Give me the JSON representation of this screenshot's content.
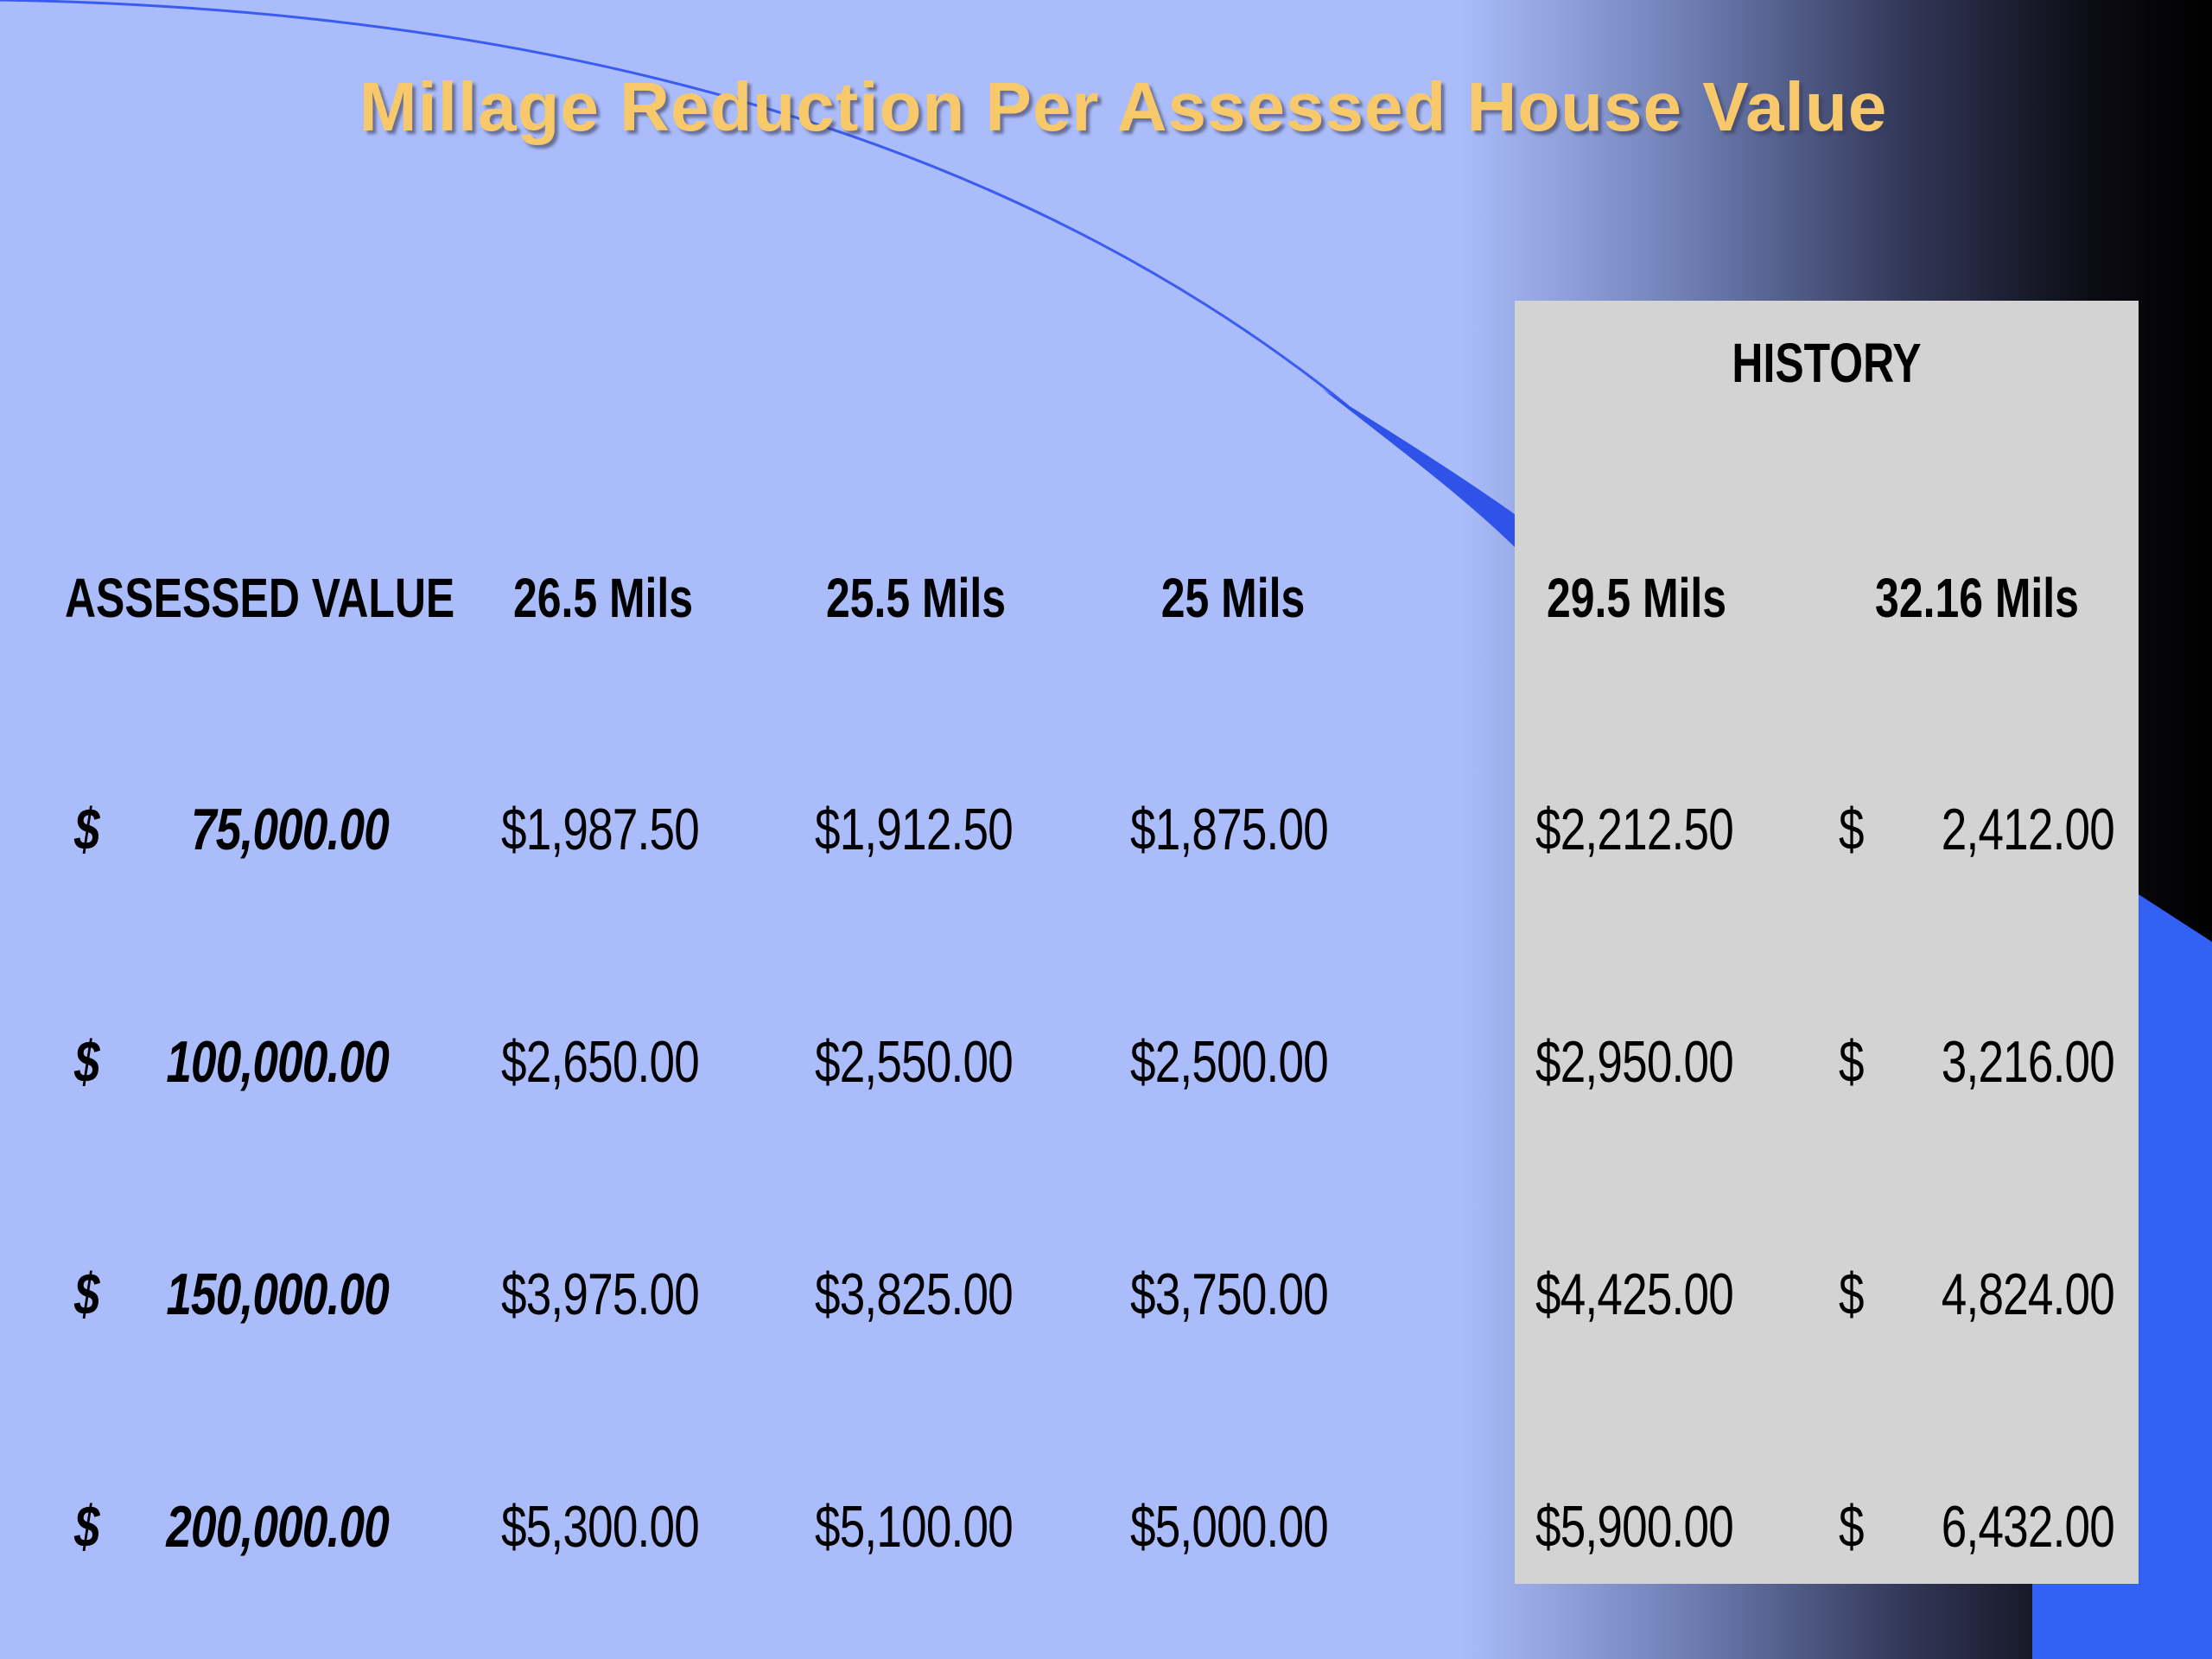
{
  "title": "Millage Reduction Per Assessed House Value",
  "colors": {
    "background": "#aabcfa",
    "title": "#f7c96b",
    "history_panel": "#d3d3d3",
    "accent_blue": "#3360f5"
  },
  "history_label": "HISTORY",
  "columns": [
    "ASSESSED VALUE",
    "26.5 Mils",
    "25.5 Mils",
    "25 Mils",
    "29.5 Mils",
    "32.16 Mils"
  ],
  "rows": [
    {
      "assessed_symbol": "$",
      "assessed_value": "75,000.00",
      "m26_5": "$1,987.50",
      "m25_5": "$1,912.50",
      "m25": "$1,875.00",
      "m29_5": "$2,212.50",
      "m32_16_symbol": "$",
      "m32_16": "2,412.00"
    },
    {
      "assessed_symbol": "$",
      "assessed_value": "100,000.00",
      "m26_5": "$2,650.00",
      "m25_5": "$2,550.00",
      "m25": "$2,500.00",
      "m29_5": "$2,950.00",
      "m32_16_symbol": "$",
      "m32_16": "3,216.00"
    },
    {
      "assessed_symbol": "$",
      "assessed_value": "150,000.00",
      "m26_5": "$3,975.00",
      "m25_5": "$3,825.00",
      "m25": "$3,750.00",
      "m29_5": "$4,425.00",
      "m32_16_symbol": "$",
      "m32_16": "4,824.00"
    },
    {
      "assessed_symbol": "$",
      "assessed_value": "200,000.00",
      "m26_5": "$5,300.00",
      "m25_5": "$5,100.00",
      "m25": "$5,000.00",
      "m29_5": "$5,900.00",
      "m32_16_symbol": "$",
      "m32_16": "6,432.00"
    }
  ]
}
